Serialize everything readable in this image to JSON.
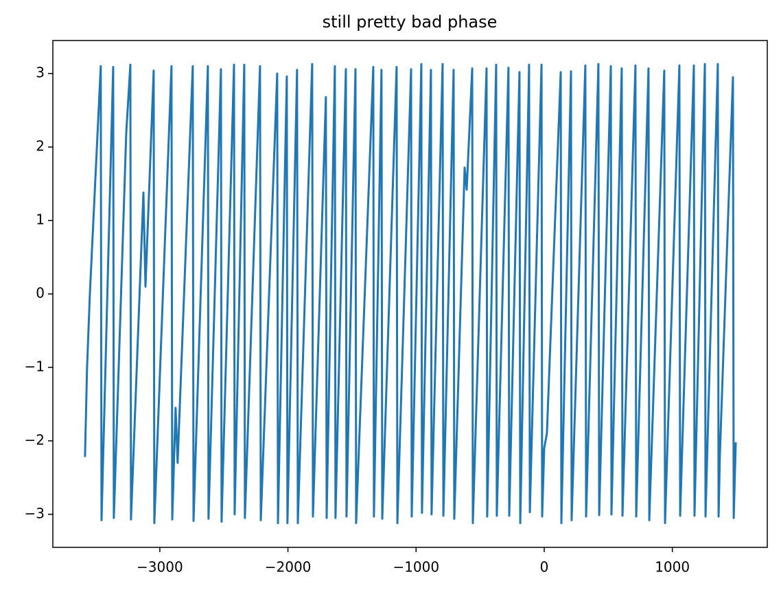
{
  "chart_data": {
    "type": "line",
    "title": "still pretty bad phase",
    "color": "#1f77b4",
    "grid": false,
    "x": [
      -3584,
      -3568,
      -3546,
      -3461,
      -3455,
      -3364,
      -3359,
      -3262,
      -3230,
      -3225,
      -3128,
      -3112,
      -3048,
      -3043,
      -2909,
      -2903,
      -2877,
      -2861,
      -2743,
      -2737,
      -2625,
      -2620,
      -2523,
      -2518,
      -2421,
      -2416,
      -2341,
      -2336,
      -2218,
      -2212,
      -2084,
      -2078,
      -2009,
      -2004,
      -1929,
      -1923,
      -1811,
      -1805,
      -1704,
      -1698,
      -1634,
      -1629,
      -1548,
      -1543,
      -1473,
      -1468,
      -1334,
      -1329,
      -1270,
      -1264,
      -1152,
      -1146,
      -1039,
      -1034,
      -959,
      -954,
      -884,
      -879,
      -793,
      -787,
      -707,
      -702,
      -621,
      -605,
      -562,
      -557,
      -450,
      -445,
      -375,
      -370,
      -279,
      -273,
      -193,
      -187,
      -118,
      -112,
      -21,
      -16,
      0,
      21,
      129,
      134,
      209,
      214,
      321,
      327,
      423,
      429,
      520,
      525,
      605,
      611,
      712,
      718,
      814,
      820,
      937,
      943,
      1055,
      1061,
      1168,
      1173,
      1254,
      1259,
      1355,
      1361,
      1371,
      1473,
      1479,
      1495
    ],
    "values": [
      -2.22,
      -1.0,
      0.0,
      3.1,
      -3.08,
      3.09,
      -3.05,
      2.2,
      3.12,
      -3.07,
      1.38,
      0.1,
      3.04,
      -3.12,
      3.1,
      -3.07,
      -1.55,
      -2.3,
      3.1,
      -3.09,
      3.1,
      -3.06,
      3.06,
      -3.1,
      3.12,
      -3.0,
      3.12,
      -3.05,
      3.1,
      -3.08,
      3.0,
      -3.12,
      2.96,
      -3.12,
      3.05,
      -3.12,
      3.13,
      -3.03,
      2.68,
      -3.05,
      3.1,
      -3.05,
      3.06,
      -3.03,
      3.06,
      -3.12,
      3.09,
      -3.03,
      3.05,
      -3.06,
      3.09,
      -3.12,
      3.06,
      -3.03,
      3.13,
      -2.98,
      3.05,
      -3.0,
      3.13,
      -3.02,
      3.05,
      -3.06,
      1.72,
      1.42,
      3.07,
      -3.12,
      3.07,
      -3.03,
      3.12,
      -3.02,
      3.08,
      -3.02,
      3.02,
      -3.12,
      3.12,
      -2.97,
      3.12,
      -3.03,
      -2.1,
      -1.9,
      3.02,
      -3.12,
      3.03,
      -3.08,
      3.11,
      -3.03,
      3.13,
      -3.01,
      3.1,
      -3.0,
      3.07,
      -3.02,
      3.11,
      -3.03,
      3.07,
      -3.08,
      3.04,
      -3.12,
      3.11,
      -3.02,
      3.11,
      -3.02,
      3.13,
      -3.03,
      3.13,
      -3.03,
      -2.2,
      2.95,
      -3.05,
      -2.02
    ],
    "xlim": [
      -3835,
      1741
    ],
    "ylim": [
      -3.45,
      3.45
    ],
    "xticks": [
      {
        "value": -3000,
        "label": "−3000"
      },
      {
        "value": -2000,
        "label": "−2000"
      },
      {
        "value": -1000,
        "label": "−1000"
      },
      0,
      1000
    ],
    "yticks": [
      {
        "value": -3,
        "label": "−3"
      },
      {
        "value": -2,
        "label": "−2"
      },
      {
        "value": -1,
        "label": "−1"
      },
      0,
      1,
      2,
      3
    ]
  }
}
